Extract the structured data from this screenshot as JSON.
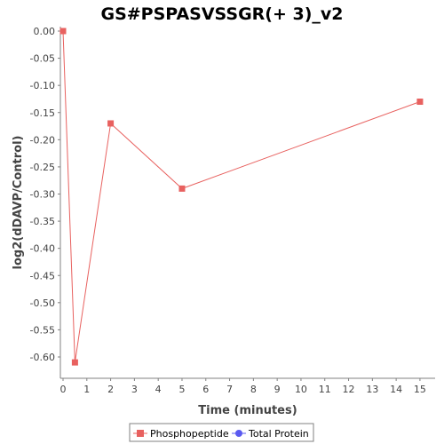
{
  "chart_data": {
    "type": "line",
    "title": "GS#PSPASVSSGR(+ 3)_v2",
    "xlabel": "Time (minutes)",
    "ylabel": "log2(dDAVP/Control)",
    "xlim": [
      0,
      15.6
    ],
    "ylim": [
      -0.64,
      0.0
    ],
    "xticks": [
      0,
      1,
      2,
      3,
      4,
      5,
      6,
      7,
      8,
      9,
      10,
      11,
      12,
      13,
      14,
      15
    ],
    "yticks": [
      0.0,
      -0.05,
      -0.1,
      -0.15,
      -0.2,
      -0.25,
      -0.3,
      -0.35,
      -0.4,
      -0.45,
      -0.5,
      -0.55,
      -0.6
    ],
    "ytick_labels": [
      "0.00",
      "-0.05",
      "-0.10",
      "-0.15",
      "-0.20",
      "-0.25",
      "-0.30",
      "-0.35",
      "-0.40",
      "-0.45",
      "-0.50",
      "-0.55",
      "-0.60"
    ],
    "grid": false,
    "legend_position": "bottom",
    "series": [
      {
        "name": "Phosphopeptide",
        "color": "#e8615f",
        "marker": "square",
        "x": [
          0,
          0.5,
          2,
          5,
          15
        ],
        "y": [
          0.0,
          -0.61,
          -0.17,
          -0.29,
          -0.13
        ]
      },
      {
        "name": "Total Protein",
        "color": "#5a5af0",
        "marker": "circle",
        "x": [],
        "y": []
      }
    ]
  }
}
